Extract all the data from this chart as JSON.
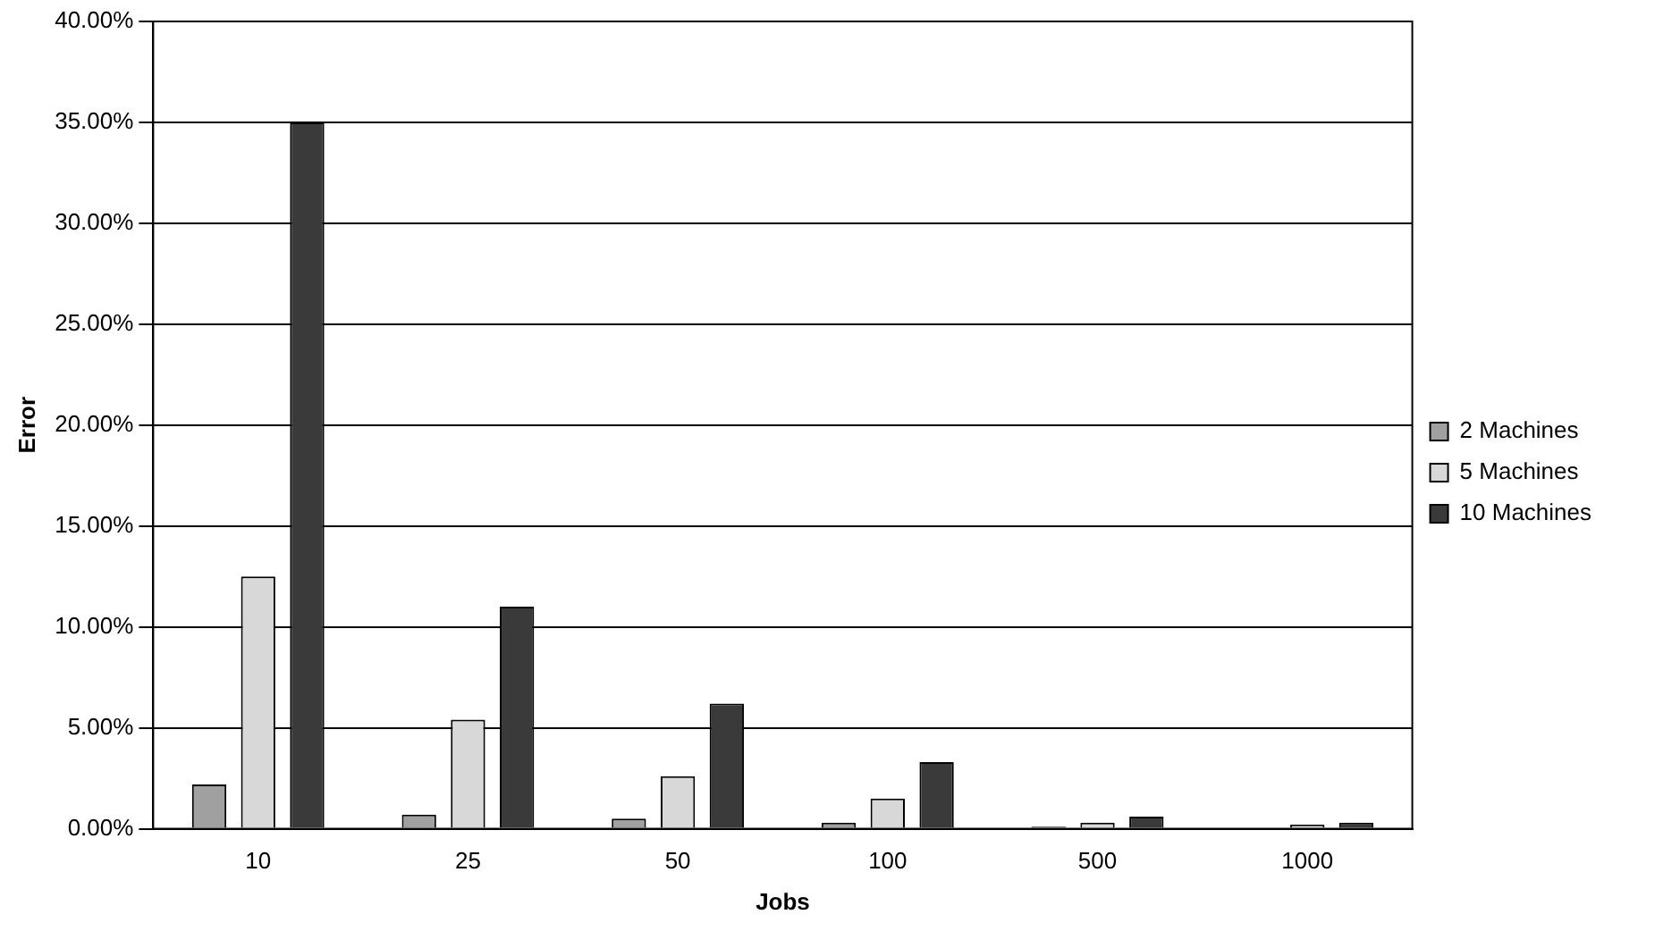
{
  "chart_data": {
    "type": "bar",
    "xlabel": "Jobs",
    "ylabel": "Error",
    "categories": [
      "10",
      "25",
      "50",
      "100",
      "500",
      "1000"
    ],
    "series": [
      {
        "name": "2 Machines",
        "color": "#a0a0a0",
        "values": [
          2.2,
          0.7,
          0.5,
          0.3,
          0.1,
          0
        ]
      },
      {
        "name": "5 Machines",
        "color": "#d8d8d8",
        "values": [
          12.5,
          5.4,
          2.6,
          1.5,
          0.3,
          0.2
        ]
      },
      {
        "name": "10 Machines",
        "color": "#3a3a3a",
        "values": [
          35,
          11,
          6.2,
          3.3,
          0.6,
          0.3
        ]
      }
    ],
    "ylim": [
      0,
      40
    ],
    "yticks": [
      {
        "value": 0,
        "label": "0.00%"
      },
      {
        "value": 5,
        "label": "5.00%"
      },
      {
        "value": 10,
        "label": "10.00%"
      },
      {
        "value": 15,
        "label": "15.00%"
      },
      {
        "value": 20,
        "label": "20.00%"
      },
      {
        "value": 25,
        "label": "25.00%"
      },
      {
        "value": 30,
        "label": "30.00%"
      },
      {
        "value": 35,
        "label": "35.00%"
      },
      {
        "value": 40,
        "label": "40.00%"
      }
    ],
    "grid": "y",
    "legend": "right"
  }
}
